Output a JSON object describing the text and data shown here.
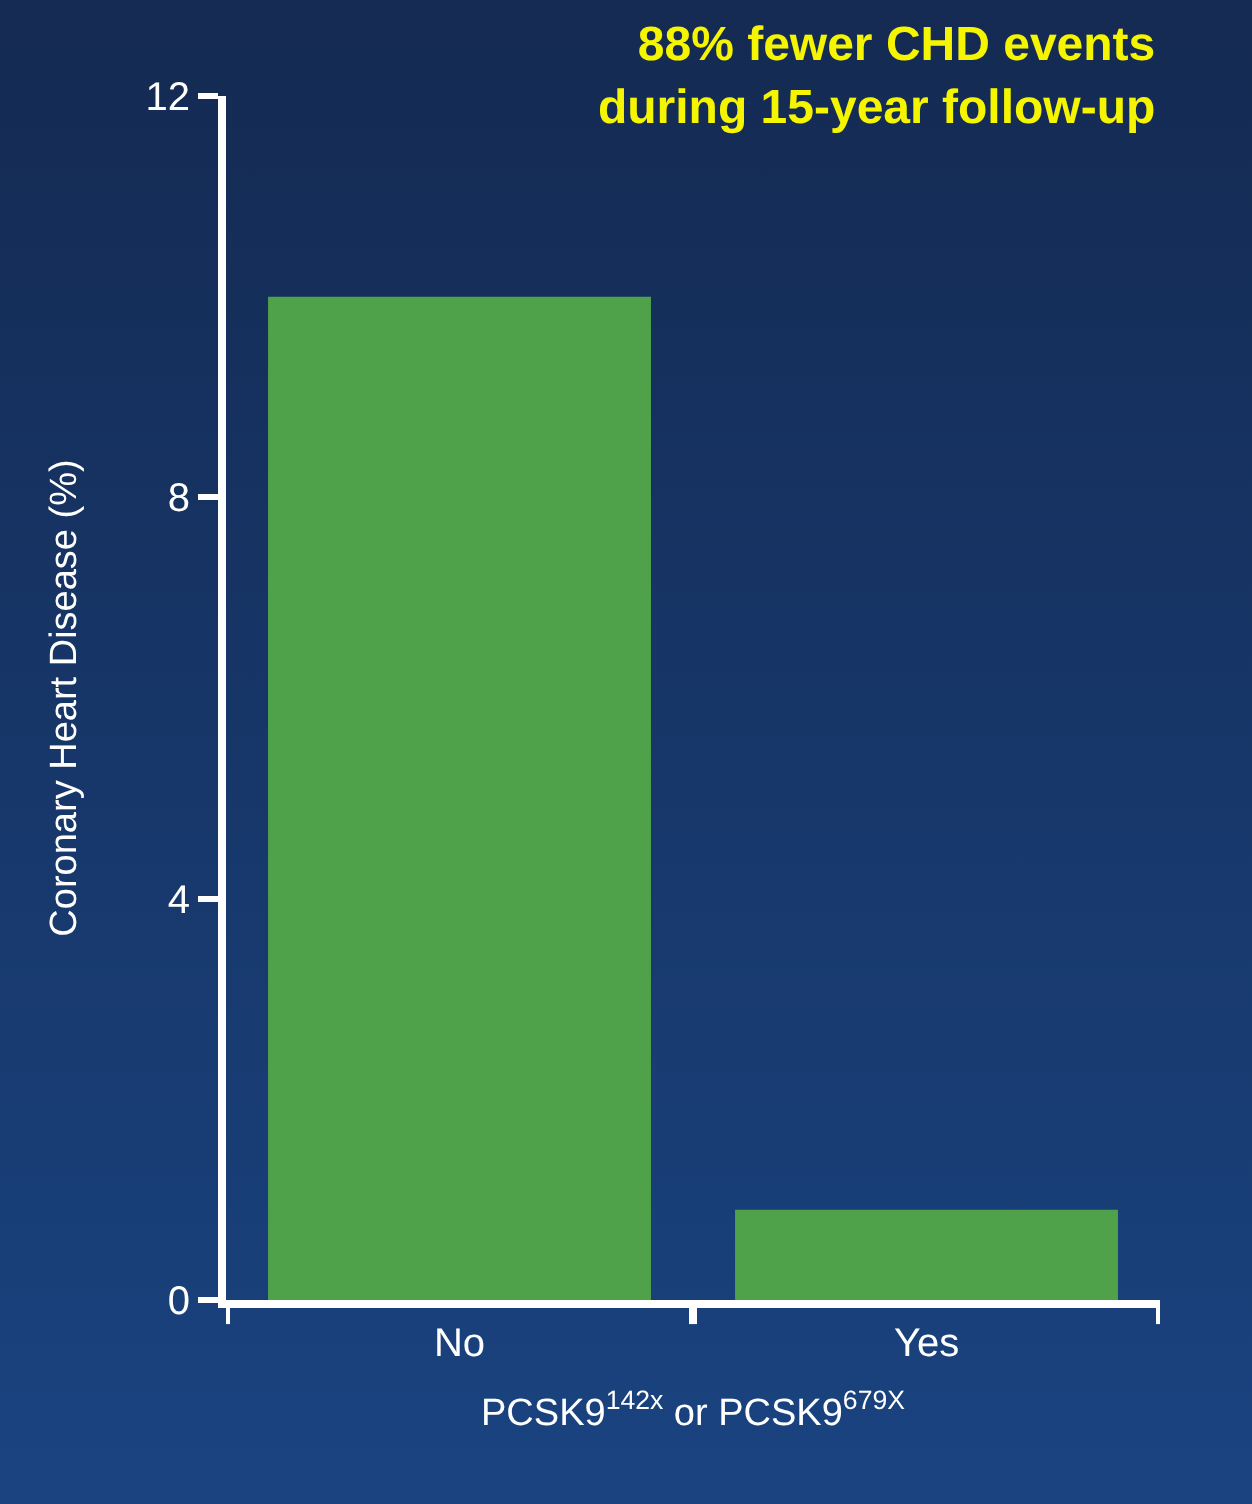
{
  "chart_data": {
    "type": "bar",
    "title": "88% fewer CHD events\nduring 15-year follow-up",
    "xlabel": "PCSK9$^{142x}$ or PCSK9$^{679X}$",
    "ylabel": "Coronary Heart Disease (%)",
    "categories": [
      "No",
      "Yes"
    ],
    "values": [
      10,
      0.9
    ],
    "color": "#4fa14a",
    "ylim": [
      0,
      12
    ],
    "yticks": [
      0,
      4,
      8,
      12
    ],
    "grid": false,
    "legend": false
  }
}
